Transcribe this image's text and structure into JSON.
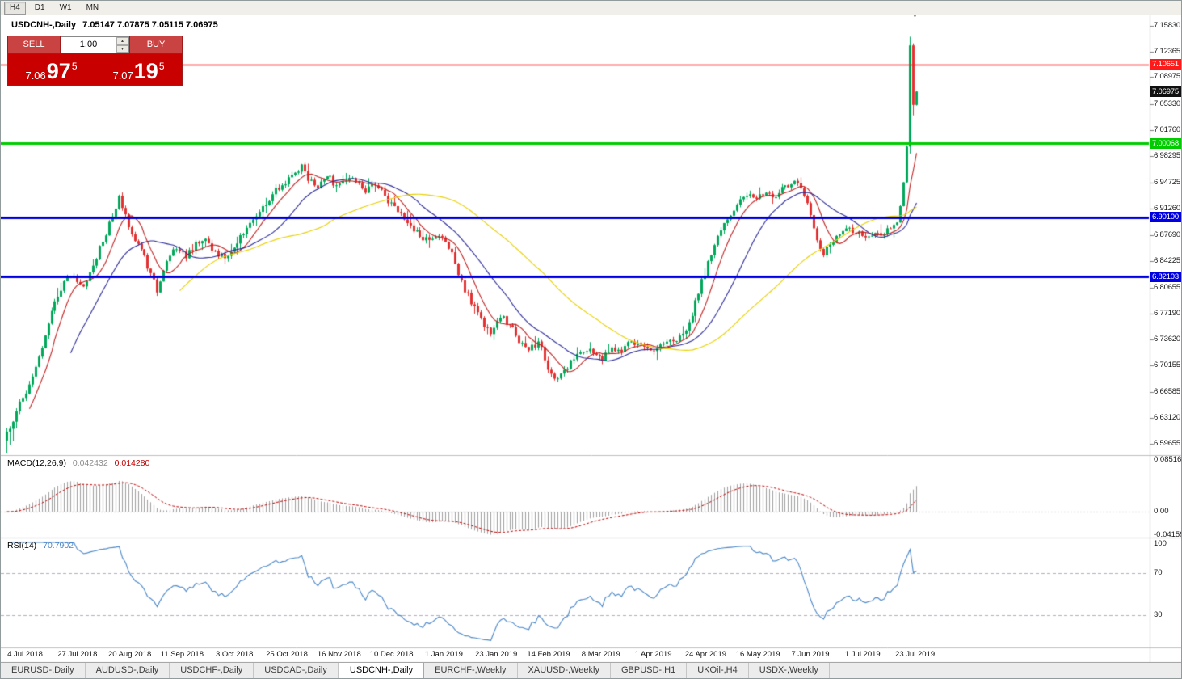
{
  "toolbar": {
    "timeframes": [
      {
        "label": "H4",
        "active": true
      },
      {
        "label": "D1",
        "active": false
      },
      {
        "label": "W1",
        "active": false
      },
      {
        "label": "MN",
        "active": false
      }
    ]
  },
  "chart": {
    "symbol_title": "USDCNH-,Daily",
    "ohlc": "7.05147 7.07875 7.05115 7.06975"
  },
  "trade_panel": {
    "sell": {
      "label": "SELL",
      "price_prefix": "7.06",
      "price_big": "97",
      "price_sup": "5"
    },
    "buy": {
      "label": "BUY",
      "price_prefix": "7.07",
      "price_big": "19",
      "price_sup": "5"
    },
    "volume": "1.00"
  },
  "icons": {
    "end_marker": "▼",
    "spinner_up": "▲",
    "spinner_down": "▼"
  },
  "price_scale": {
    "min": 6.59655,
    "max": 7.1583,
    "labels": [
      "7.15830",
      "7.12365",
      "7.08975",
      "7.05330",
      "7.01760",
      "6.98295",
      "6.94725",
      "6.91260",
      "6.87690",
      "6.84225",
      "6.80655",
      "6.77190",
      "6.73620",
      "6.70155",
      "6.66585",
      "6.63120",
      "6.59655"
    ]
  },
  "current_price": {
    "label": "7.06975",
    "price": 7.06975,
    "badge_color": "#101010"
  },
  "macd": {
    "name": "MACD(12,26,9)",
    "value_main": "0.042432",
    "value_signal": "0.014280",
    "scale_labels": [
      "0.085164",
      "0.00",
      "-0.041597"
    ]
  },
  "rsi": {
    "name": "RSI(14)",
    "value": "70.7902",
    "scale_labels": [
      "100",
      "70",
      "30"
    ]
  },
  "x_axis": {
    "labels": [
      "4 Jul 2018",
      "27 Jul 2018",
      "20 Aug 2018",
      "11 Sep 2018",
      "3 Oct 2018",
      "25 Oct 2018",
      "16 Nov 2018",
      "10 Dec 2018",
      "1 Jan 2019",
      "23 Jan 2019",
      "14 Feb 2019",
      "8 Mar 2019",
      "1 Apr 2019",
      "24 Apr 2019",
      "16 May 2019",
      "7 Jun 2019",
      "1 Jul 2019",
      "23 Jul 2019"
    ]
  },
  "tabs": [
    {
      "label": "EURUSD-,Daily",
      "active": false
    },
    {
      "label": "AUDUSD-,Daily",
      "active": false
    },
    {
      "label": "USDCHF-,Daily",
      "active": false
    },
    {
      "label": "USDCAD-,Daily",
      "active": false
    },
    {
      "label": "USDCNH-,Daily",
      "active": true
    },
    {
      "label": "EURCHF-,Weekly",
      "active": false
    },
    {
      "label": "XAUUSD-,Weekly",
      "active": false
    },
    {
      "label": "GBPUSD-,H1",
      "active": false
    },
    {
      "label": "UKOil-,H4",
      "active": false
    },
    {
      "label": "USDX-,Weekly",
      "active": false
    }
  ],
  "chart_data": {
    "type": "candlestick",
    "symbol": "USDCNH",
    "timeframe": "Daily",
    "x_range": [
      "4 Jul 2018",
      "5 Aug 2019"
    ],
    "price_range": [
      6.59655,
      7.1583
    ],
    "candle_count": 285,
    "up_color": "#00a85a",
    "down_color": "#e33030",
    "close_anchors": [
      [
        0,
        6.613
      ],
      [
        3,
        6.64
      ],
      [
        6,
        6.664
      ],
      [
        9,
        6.7
      ],
      [
        12,
        6.742
      ],
      [
        15,
        6.788
      ],
      [
        18,
        6.815
      ],
      [
        21,
        6.822
      ],
      [
        24,
        6.808
      ],
      [
        27,
        6.836
      ],
      [
        30,
        6.868
      ],
      [
        33,
        6.902
      ],
      [
        35,
        6.93
      ],
      [
        37,
        6.905
      ],
      [
        39,
        6.878
      ],
      [
        42,
        6.858
      ],
      [
        45,
        6.826
      ],
      [
        47,
        6.8
      ],
      [
        50,
        6.842
      ],
      [
        53,
        6.858
      ],
      [
        56,
        6.846
      ],
      [
        59,
        6.868
      ],
      [
        62,
        6.872
      ],
      [
        65,
        6.856
      ],
      [
        68,
        6.846
      ],
      [
        71,
        6.86
      ],
      [
        74,
        6.878
      ],
      [
        77,
        6.898
      ],
      [
        80,
        6.916
      ],
      [
        83,
        6.932
      ],
      [
        86,
        6.944
      ],
      [
        89,
        6.958
      ],
      [
        92,
        6.972
      ],
      [
        94,
        6.95
      ],
      [
        97,
        6.94
      ],
      [
        100,
        6.956
      ],
      [
        103,
        6.944
      ],
      [
        106,
        6.95
      ],
      [
        109,
        6.948
      ],
      [
        112,
        6.934
      ],
      [
        115,
        6.944
      ],
      [
        118,
        6.93
      ],
      [
        121,
        6.916
      ],
      [
        124,
        6.898
      ],
      [
        127,
        6.882
      ],
      [
        130,
        6.87
      ],
      [
        133,
        6.872
      ],
      [
        136,
        6.874
      ],
      [
        139,
        6.854
      ],
      [
        142,
        6.816
      ],
      [
        145,
        6.784
      ],
      [
        148,
        6.766
      ],
      [
        151,
        6.744
      ],
      [
        154,
        6.766
      ],
      [
        157,
        6.756
      ],
      [
        160,
        6.732
      ],
      [
        163,
        6.722
      ],
      [
        166,
        6.734
      ],
      [
        169,
        6.696
      ],
      [
        171,
        6.684
      ],
      [
        174,
        6.696
      ],
      [
        177,
        6.71
      ],
      [
        180,
        6.72
      ],
      [
        183,
        6.718
      ],
      [
        186,
        6.708
      ],
      [
        189,
        6.726
      ],
      [
        192,
        6.72
      ],
      [
        195,
        6.734
      ],
      [
        198,
        6.73
      ],
      [
        201,
        6.722
      ],
      [
        204,
        6.73
      ],
      [
        207,
        6.736
      ],
      [
        210,
        6.742
      ],
      [
        213,
        6.76
      ],
      [
        216,
        6.798
      ],
      [
        219,
        6.842
      ],
      [
        222,
        6.876
      ],
      [
        225,
        6.898
      ],
      [
        228,
        6.918
      ],
      [
        231,
        6.93
      ],
      [
        234,
        6.926
      ],
      [
        237,
        6.934
      ],
      [
        240,
        6.928
      ],
      [
        243,
        6.944
      ],
      [
        246,
        6.95
      ],
      [
        249,
        6.93
      ],
      [
        251,
        6.904
      ],
      [
        253,
        6.87
      ],
      [
        255,
        6.85
      ],
      [
        257,
        6.864
      ],
      [
        259,
        6.876
      ],
      [
        262,
        6.886
      ],
      [
        265,
        6.878
      ],
      [
        268,
        6.874
      ],
      [
        271,
        6.88
      ],
      [
        274,
        6.878
      ],
      [
        276,
        6.886
      ],
      [
        278,
        6.894
      ],
      [
        279,
        6.916
      ],
      [
        280,
        6.948
      ],
      [
        281,
        6.996
      ],
      [
        282,
        7.132
      ],
      [
        283,
        7.052
      ],
      [
        284,
        7.07
      ]
    ],
    "moving_averages": [
      {
        "period": 8,
        "color": "#c02020"
      },
      {
        "period": 21,
        "color": "#2a2a9a"
      },
      {
        "period": 55,
        "color": "#e8d000"
      }
    ],
    "horizontal_lines": [
      {
        "price": 7.10651,
        "label": "7.10651",
        "color": "#ff1a1a",
        "width": 1.5
      },
      {
        "price": 7.00068,
        "label": "7.00068",
        "color": "#00cc00",
        "width": 3
      },
      {
        "price": 6.901,
        "label": "6.90100",
        "color": "#0000e0",
        "width": 3
      },
      {
        "price": 6.82103,
        "label": "6.82103",
        "color": "#0000e0",
        "width": 3
      }
    ],
    "indicators": {
      "macd": {
        "params": [
          12,
          26,
          9
        ],
        "histogram_color": "#a0a0a0",
        "signal_color": "#c00000",
        "current_main": 0.042432,
        "current_signal": 0.01428,
        "range": [
          -0.041597,
          0.085164
        ]
      },
      "rsi": {
        "period": 14,
        "color": "#4a86c8",
        "levels": [
          30,
          70
        ],
        "range": [
          0,
          100
        ],
        "current": 70.7902
      }
    }
  }
}
